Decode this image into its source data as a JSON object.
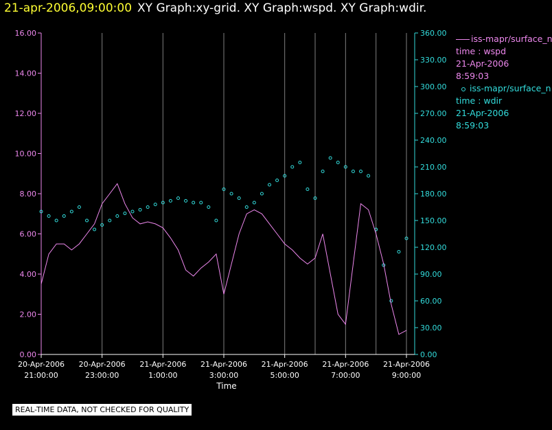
{
  "header": {
    "timestamp": "21-apr-2006,09:00:00",
    "graphs": "XY Graph:xy-grid.  XY Graph:wspd.  XY Graph:wdir."
  },
  "legend": {
    "series1": {
      "name": "iss-mapr/surface_n",
      "var": "time : wspd",
      "date": "21-Apr-2006",
      "time": "8:59:03"
    },
    "series2": {
      "name": "iss-mapr/surface_n",
      "var": "time : wdir",
      "date": "21-Apr-2006",
      "time": "8:59:03"
    }
  },
  "footer": {
    "quality_note": "REAL-TIME DATA, NOT CHECKED FOR QUALITY"
  },
  "colors": {
    "wspd": "#ee88ee",
    "wdir": "#33dddd",
    "grid": "#808080",
    "axis": "#ffffff",
    "title": "#ffff33"
  },
  "chart_data": {
    "type": "line",
    "xlabel": "Time",
    "xlim_hours": [
      0,
      12
    ],
    "x_ticks": [
      {
        "h": 0,
        "label1": "20-Apr-2006",
        "label2": "21:00:00"
      },
      {
        "h": 2,
        "label1": "20-Apr-2006",
        "label2": "23:00:00"
      },
      {
        "h": 4,
        "label1": "21-Apr-2006",
        "label2": "1:00:00"
      },
      {
        "h": 6,
        "label1": "21-Apr-2006",
        "label2": "3:00:00"
      },
      {
        "h": 8,
        "label1": "21-Apr-2006",
        "label2": "5:00:00"
      },
      {
        "h": 10,
        "label1": "21-Apr-2006",
        "label2": "7:00:00"
      },
      {
        "h": 12,
        "label1": "21-Apr-2006",
        "label2": "9:00:00"
      }
    ],
    "grid_hours": [
      2,
      4,
      6,
      8,
      9,
      10,
      11,
      12
    ],
    "y_left": {
      "label": "wspd",
      "range": [
        0,
        16
      ],
      "ticks": [
        "0.00",
        "2.00",
        "4.00",
        "6.00",
        "8.00",
        "10.00",
        "12.00",
        "14.00",
        "16.00"
      ]
    },
    "y_right": {
      "label": "wdir",
      "range": [
        0,
        360
      ],
      "ticks": [
        "0.00",
        "30.00",
        "60.00",
        "90.00",
        "120.00",
        "150.00",
        "180.00",
        "210.00",
        "240.00",
        "270.00",
        "300.00",
        "330.00",
        "360.00"
      ]
    },
    "series": [
      {
        "name": "wspd",
        "style": "line",
        "x": [
          0,
          0.25,
          0.5,
          0.75,
          1,
          1.25,
          1.5,
          1.75,
          2,
          2.25,
          2.5,
          2.75,
          3,
          3.25,
          3.5,
          3.75,
          4,
          4.25,
          4.5,
          4.75,
          5,
          5.25,
          5.5,
          5.75,
          6,
          6.25,
          6.5,
          6.75,
          7,
          7.25,
          7.5,
          7.75,
          8,
          8.25,
          8.5,
          8.75,
          9,
          9.25,
          9.5,
          9.75,
          10,
          10.25,
          10.5,
          10.75,
          11,
          11.25,
          11.5,
          11.75,
          12
        ],
        "values": [
          3.5,
          5.0,
          5.5,
          5.5,
          5.2,
          5.5,
          6.0,
          6.5,
          7.5,
          8.0,
          8.5,
          7.5,
          6.8,
          6.5,
          6.6,
          6.5,
          6.3,
          5.8,
          5.2,
          4.2,
          3.9,
          4.3,
          4.6,
          5.0,
          3.0,
          4.5,
          6.0,
          7.0,
          7.2,
          7.0,
          6.5,
          6.0,
          5.5,
          5.2,
          4.8,
          4.5,
          4.8,
          6.0,
          4.0,
          2.0,
          1.5,
          4.5,
          7.5,
          7.2,
          6.0,
          4.5,
          2.5,
          1.0,
          1.2
        ]
      },
      {
        "name": "wdir",
        "style": "points",
        "x": [
          0,
          0.25,
          0.5,
          0.75,
          1,
          1.25,
          1.5,
          1.75,
          2,
          2.25,
          2.5,
          2.75,
          3,
          3.25,
          3.5,
          3.75,
          4,
          4.25,
          4.5,
          4.75,
          5,
          5.25,
          5.5,
          5.75,
          6,
          6.25,
          6.5,
          6.75,
          7,
          7.25,
          7.5,
          7.75,
          8,
          8.25,
          8.5,
          8.75,
          9,
          9.25,
          9.5,
          9.75,
          10,
          10.25,
          10.5,
          10.75,
          11,
          11.25,
          11.5,
          11.75,
          12
        ],
        "values": [
          160,
          155,
          150,
          155,
          160,
          165,
          150,
          140,
          145,
          150,
          155,
          158,
          160,
          162,
          165,
          168,
          170,
          172,
          175,
          172,
          170,
          170,
          165,
          150,
          185,
          180,
          175,
          165,
          170,
          180,
          190,
          195,
          200,
          210,
          215,
          185,
          175,
          205,
          220,
          215,
          210,
          205,
          205,
          200,
          140,
          100,
          60,
          115,
          130
        ]
      }
    ]
  }
}
